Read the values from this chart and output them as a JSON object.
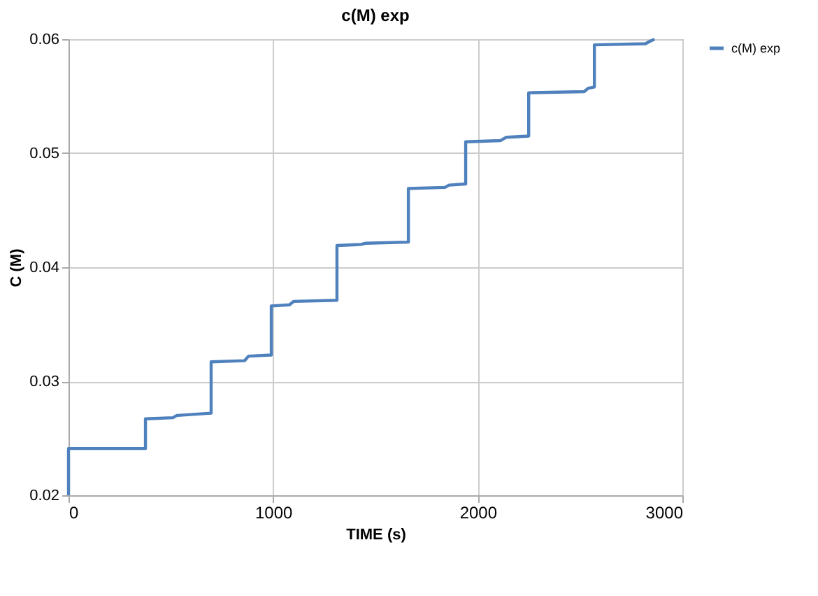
{
  "chart_data": {
    "type": "line",
    "title": "c(M) exp",
    "xlabel": "TIME (s)",
    "ylabel": "C (M)",
    "series": [
      {
        "name": "c(M) exp",
        "color": "#4f81bd",
        "x": [
          0,
          0,
          150,
          376,
          376,
          510,
          530,
          697,
          697,
          860,
          880,
          991,
          991,
          1080,
          1100,
          1312,
          1312,
          1430,
          1450,
          1661,
          1661,
          1840,
          1860,
          1941,
          1941,
          2110,
          2140,
          2249,
          2249,
          2520,
          2540,
          2570,
          2570,
          2820,
          2840,
          2864
        ],
        "values": [
          0.02,
          0.0241,
          0.0241,
          0.0241,
          0.0267,
          0.0268,
          0.027,
          0.0272,
          0.0317,
          0.0318,
          0.0322,
          0.0323,
          0.0366,
          0.0367,
          0.037,
          0.0371,
          0.0419,
          0.042,
          0.0421,
          0.0422,
          0.0469,
          0.047,
          0.0472,
          0.0473,
          0.051,
          0.0511,
          0.0514,
          0.0515,
          0.0553,
          0.0554,
          0.0557,
          0.0558,
          0.0595,
          0.0596,
          0.0598,
          0.06
        ]
      }
    ],
    "xlim": [
      0,
      3000
    ],
    "xticks": [
      0,
      1000,
      2000,
      3000
    ],
    "ylim": [
      0.02,
      0.06
    ],
    "yticks": [
      0.02,
      0.03,
      0.04,
      0.05,
      0.06
    ],
    "grid": true,
    "legend": "right",
    "marker": "none",
    "line_style": "solid"
  }
}
